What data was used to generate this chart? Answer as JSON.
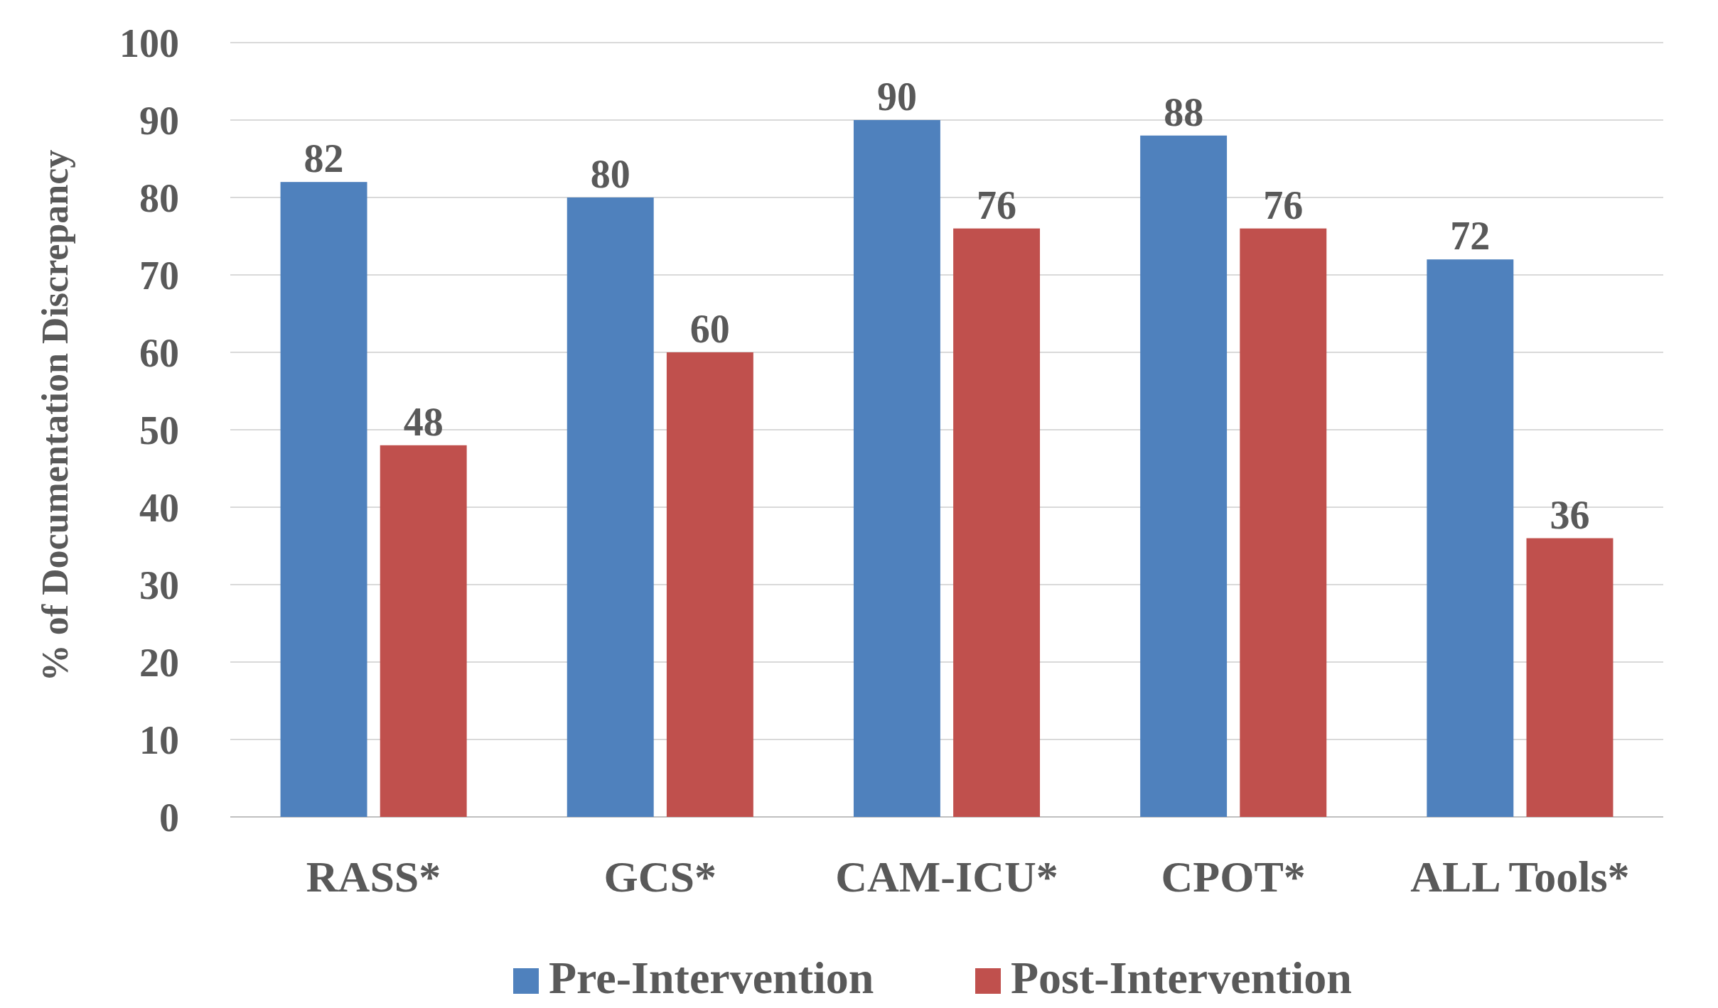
{
  "chart_data": {
    "type": "bar",
    "ylabel": "% of Documentation Discrepancy",
    "categories": [
      "RASS*",
      "GCS*",
      "CAM-ICU*",
      "CPOT*",
      "ALL Tools*"
    ],
    "series": [
      {
        "name": "Pre-Intervention",
        "color": "#4f81bd",
        "values": [
          82,
          80,
          90,
          88,
          72
        ]
      },
      {
        "name": "Post-Intervention",
        "color": "#c0504d",
        "values": [
          48,
          60,
          76,
          76,
          36
        ]
      }
    ],
    "ylim": [
      0,
      100
    ],
    "yticks": [
      0,
      10,
      20,
      30,
      40,
      50,
      60,
      70,
      80,
      90,
      100
    ],
    "grid": "y",
    "legend": "bottom",
    "data_labels": true
  }
}
